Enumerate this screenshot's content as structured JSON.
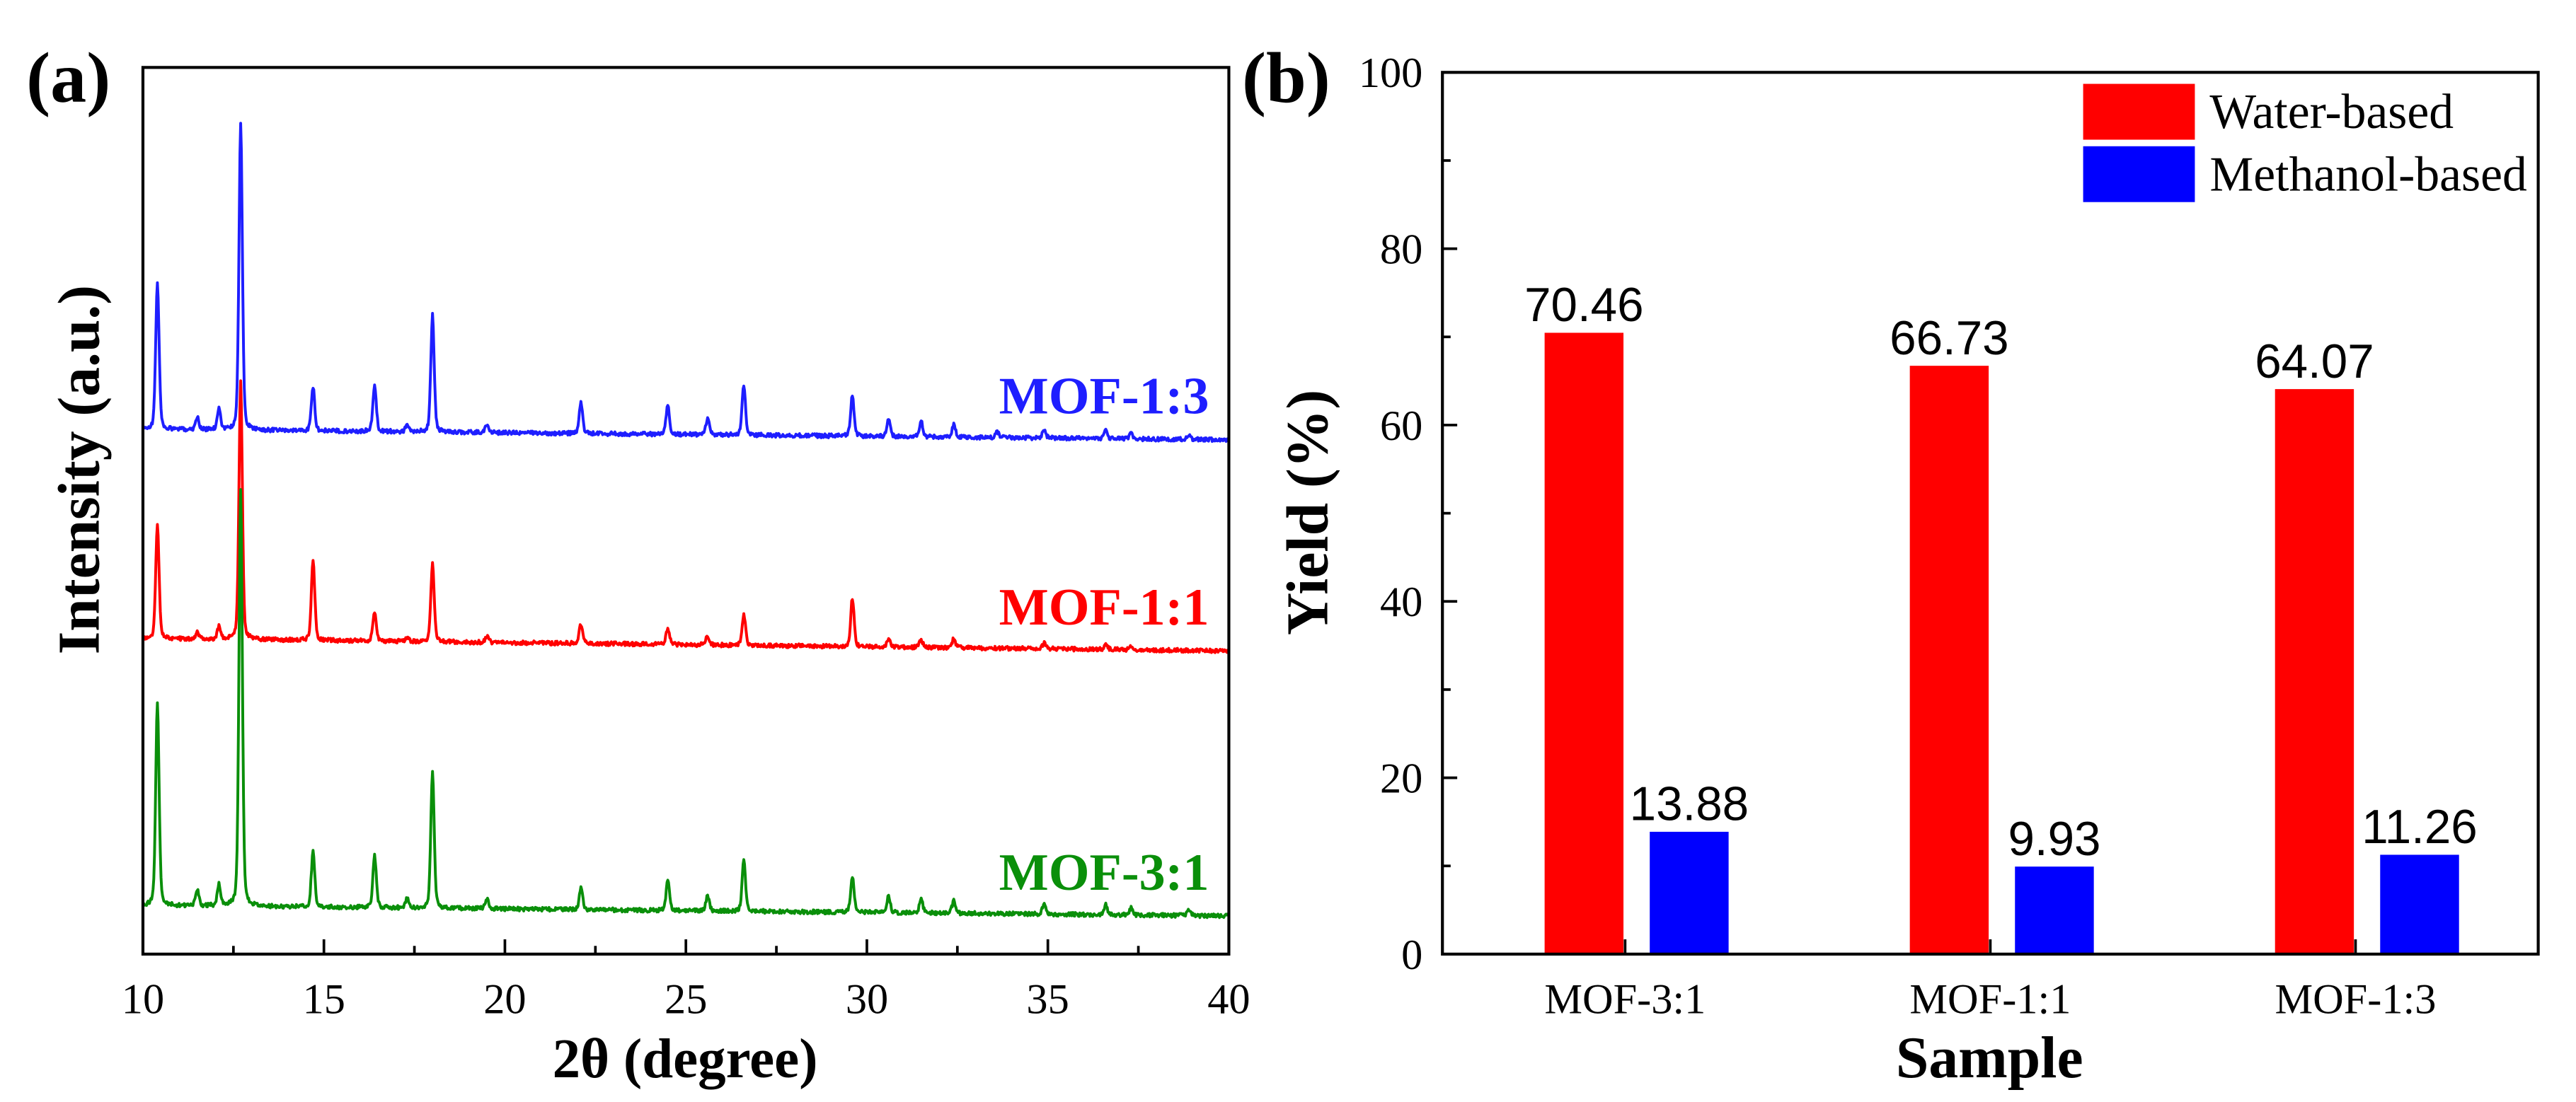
{
  "panels": {
    "a": "(a)",
    "b": "(b)"
  },
  "chart_data": [
    {
      "type": "line",
      "title": "",
      "xlabel": "2θ (degree)",
      "ylabel": "Intensity (a.u.)",
      "xlim": [
        10,
        40
      ],
      "xticks": [
        10,
        15,
        20,
        25,
        30,
        35,
        40
      ],
      "ylim": [
        0,
        100
      ],
      "yticks": [],
      "series": [
        {
          "name": "MOF-1:3",
          "color": "#1e1eff",
          "baseline": [
            59.2,
            58.0
          ],
          "peaks": [
            [
              10.4,
              16.6
            ],
            [
              11.5,
              1.4
            ],
            [
              12.1,
              2.4
            ],
            [
              12.7,
              34.6
            ],
            [
              14.7,
              4.9
            ],
            [
              16.4,
              5.2
            ],
            [
              17.3,
              0.7
            ],
            [
              18.0,
              13.2
            ],
            [
              19.5,
              0.9
            ],
            [
              22.1,
              3.5
            ],
            [
              24.5,
              3.2
            ],
            [
              25.6,
              1.8
            ],
            [
              26.6,
              5.6
            ],
            [
              29.6,
              4.6
            ],
            [
              30.6,
              2.0
            ],
            [
              31.5,
              1.7
            ],
            [
              32.4,
              1.4
            ],
            [
              33.6,
              0.6
            ],
            [
              34.9,
              0.9
            ],
            [
              36.6,
              0.9
            ],
            [
              37.3,
              0.6
            ],
            [
              38.9,
              0.6
            ]
          ]
        },
        {
          "name": "MOF-1:1",
          "color": "#ff0000",
          "baseline": [
            35.6,
            34.2
          ],
          "peaks": [
            [
              10.4,
              12.9
            ],
            [
              11.5,
              0.8
            ],
            [
              12.1,
              1.4
            ],
            [
              12.7,
              29.0
            ],
            [
              14.7,
              9.1
            ],
            [
              16.4,
              3.3
            ],
            [
              17.3,
              0.5
            ],
            [
              18.0,
              8.8
            ],
            [
              19.5,
              0.7
            ],
            [
              22.1,
              2.2
            ],
            [
              24.5,
              1.8
            ],
            [
              25.6,
              1.0
            ],
            [
              26.6,
              3.5
            ],
            [
              29.6,
              5.5
            ],
            [
              30.6,
              1.0
            ],
            [
              31.5,
              0.8
            ],
            [
              32.4,
              1.0
            ],
            [
              34.9,
              0.6
            ],
            [
              36.6,
              0.6
            ],
            [
              37.3,
              0.5
            ]
          ]
        },
        {
          "name": "MOF-3:1",
          "color": "#0a8f0a",
          "baseline": [
            5.5,
            4.3
          ],
          "peaks": [
            [
              10.4,
              22.8
            ],
            [
              11.5,
              1.8
            ],
            [
              12.1,
              2.4
            ],
            [
              12.7,
              47.0
            ],
            [
              14.7,
              6.4
            ],
            [
              16.4,
              5.9
            ],
            [
              17.3,
              1.0
            ],
            [
              18.0,
              15.4
            ],
            [
              19.5,
              1.2
            ],
            [
              22.1,
              2.4
            ],
            [
              24.5,
              3.3
            ],
            [
              25.6,
              1.7
            ],
            [
              26.6,
              5.7
            ],
            [
              29.6,
              4.0
            ],
            [
              30.6,
              1.9
            ],
            [
              31.5,
              1.6
            ],
            [
              32.4,
              1.4
            ],
            [
              34.9,
              1.3
            ],
            [
              36.6,
              1.1
            ],
            [
              37.3,
              0.8
            ],
            [
              38.9,
              0.7
            ]
          ]
        }
      ]
    },
    {
      "type": "bar",
      "title": "",
      "xlabel": "Sample",
      "ylabel": "Yield (%)",
      "ylim": [
        0,
        100
      ],
      "yticks": [
        0,
        20,
        40,
        60,
        80,
        100
      ],
      "categories": [
        "MOF-3:1",
        "MOF-1:1",
        "MOF-1:3"
      ],
      "series": [
        {
          "name": "Water-based",
          "color": "#ff0000",
          "values": [
            70.46,
            66.73,
            64.07
          ]
        },
        {
          "name": "Methanol-based",
          "color": "#0000ff",
          "values": [
            13.88,
            9.93,
            11.26
          ]
        }
      ],
      "legend_position": "top-right"
    }
  ]
}
